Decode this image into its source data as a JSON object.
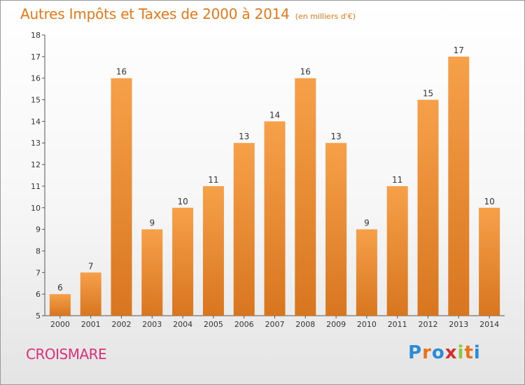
{
  "header": {
    "title": "Autres Impôts et Taxes de 2000 à 2014",
    "unit": "(en milliers d'€)"
  },
  "footer": {
    "commune": "CROISMARE",
    "logo": {
      "text": "Proxiti",
      "colors": [
        "#2b8bd6",
        "#e8731a",
        "#2b8bd6",
        "#d42d2d",
        "#8cc63e",
        "#e8731a",
        "#2b8bd6"
      ]
    }
  },
  "colors": {
    "bar_light": "#f6a04a",
    "bar_dark": "#d8761f",
    "title": "#e67815",
    "commune": "#d9307a"
  },
  "chart_data": {
    "type": "bar",
    "title": "Autres Impôts et Taxes de 2000 à 2014",
    "ylabel": "",
    "xlabel": "",
    "categories": [
      "2000",
      "2001",
      "2002",
      "2003",
      "2004",
      "2005",
      "2006",
      "2007",
      "2008",
      "2009",
      "2010",
      "2011",
      "2012",
      "2013",
      "2014"
    ],
    "values": [
      6,
      7,
      16,
      9,
      10,
      11,
      13,
      14,
      16,
      13,
      9,
      11,
      15,
      17,
      10
    ],
    "ylim": [
      5,
      18
    ],
    "yticks": [
      5,
      6,
      7,
      8,
      9,
      10,
      11,
      12,
      13,
      14,
      15,
      16,
      17,
      18
    ],
    "grid": false,
    "data_labels": true
  }
}
